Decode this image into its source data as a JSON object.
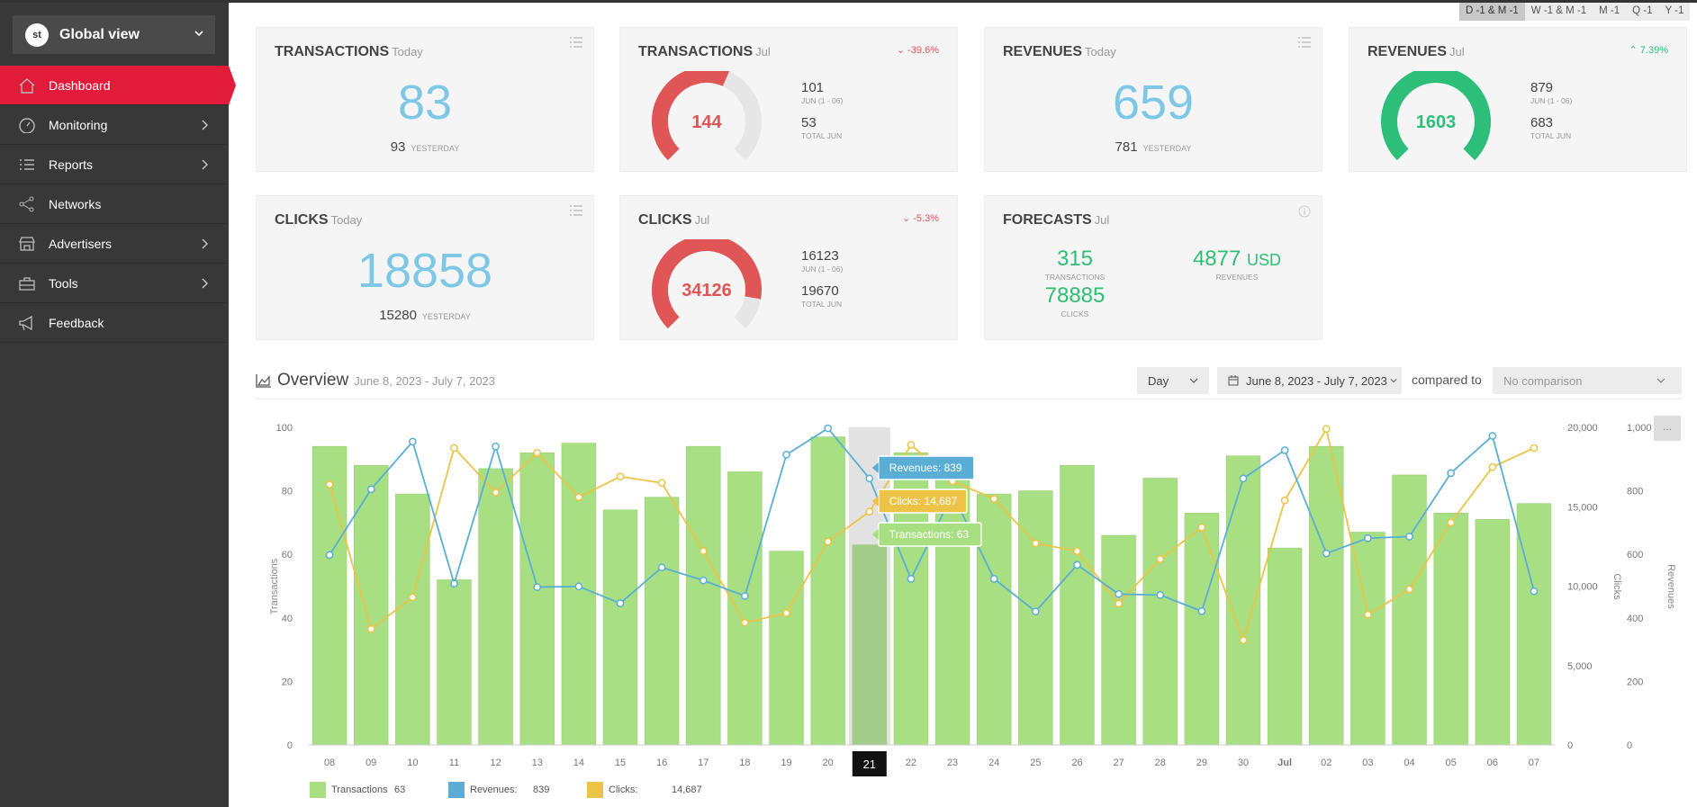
{
  "sidebar": {
    "global_view": "Global view",
    "logo": "st",
    "items": [
      {
        "label": "Dashboard",
        "active": true,
        "has_arrow": false,
        "icon": "home-icon"
      },
      {
        "label": "Monitoring",
        "active": false,
        "has_arrow": true,
        "icon": "gauge-icon"
      },
      {
        "label": "Reports",
        "active": false,
        "has_arrow": true,
        "icon": "list-icon"
      },
      {
        "label": "Networks",
        "active": false,
        "has_arrow": false,
        "icon": "network-icon"
      },
      {
        "label": "Advertisers",
        "active": false,
        "has_arrow": true,
        "icon": "store-icon"
      },
      {
        "label": "Tools",
        "active": false,
        "has_arrow": true,
        "icon": "toolbox-icon"
      },
      {
        "label": "Feedback",
        "active": false,
        "has_arrow": false,
        "icon": "megaphone-icon"
      }
    ]
  },
  "period_tabs": [
    "D -1 & M -1",
    "W -1 & M -1",
    "M -1",
    "Q -1",
    "Y -1"
  ],
  "cards": {
    "trans_today": {
      "title": "TRANSACTIONS",
      "period": "Today",
      "value": "83",
      "prev": "93",
      "prev_label": "YESTERDAY"
    },
    "trans_jul": {
      "title": "TRANSACTIONS",
      "period": "Jul",
      "gauge": "144",
      "gauge_fraction": 0.59,
      "trend": "-39.6%",
      "stat1": "101",
      "stat1_label": "JUN (1 - 06)",
      "stat2": "53",
      "stat2_label": "TOTAL JUN"
    },
    "rev_today": {
      "title": "REVENUES",
      "period": "Today",
      "value": "659",
      "prev": "781",
      "prev_label": "YESTERDAY"
    },
    "rev_jul": {
      "title": "REVENUES",
      "period": "Jul",
      "gauge": "1603",
      "gauge_fraction": 1.0,
      "trend": "7.39%",
      "stat1": "879",
      "stat1_label": "JUN (1 - 06)",
      "stat2": "683",
      "stat2_label": "TOTAL JUN"
    },
    "clicks_today": {
      "title": "CLICKS",
      "period": "Today",
      "value": "18858",
      "prev": "15280",
      "prev_label": "YESTERDAY"
    },
    "clicks_jul": {
      "title": "CLICKS",
      "period": "Jul",
      "gauge": "34126",
      "gauge_fraction": 0.87,
      "trend": "-5.3%",
      "stat1": "16123",
      "stat1_label": "JUN (1 - 06)",
      "stat2": "19670",
      "stat2_label": "TOTAL JUN"
    },
    "forecasts": {
      "title": "FORECASTS",
      "period": "Jul",
      "transactions": "315",
      "transactions_label": "TRANSACTIONS",
      "revenues": "4877",
      "revenues_unit": "USD",
      "revenues_label": "REVENUES",
      "clicks": "78885",
      "clicks_label": "CLICKS"
    }
  },
  "overview": {
    "title": "Overview",
    "range": "June 8, 2023 - July 7, 2023",
    "granularity": "Day",
    "date_button": "June 8, 2023 - July 7, 2023",
    "compared_to": "compared to",
    "comparison": "No comparison",
    "more": "..."
  },
  "colors": {
    "accent": "#e31b3b",
    "transactions": "#a8df82",
    "revenues": "#5aaed6",
    "clicks": "#ecc346",
    "gauge_red": "#e05555",
    "gauge_green": "#2dbf7a"
  },
  "chart_data": {
    "type": "bar",
    "categories": [
      "08",
      "09",
      "10",
      "11",
      "12",
      "13",
      "14",
      "15",
      "16",
      "17",
      "18",
      "19",
      "20",
      "21",
      "22",
      "23",
      "24",
      "25",
      "26",
      "27",
      "28",
      "29",
      "30",
      "Jul",
      "02",
      "03",
      "04",
      "05",
      "06",
      "07"
    ],
    "series": [
      {
        "name": "Transactions",
        "type": "bar",
        "axis": "left",
        "values": [
          94,
          88,
          79,
          52,
          87,
          92,
          95,
          74,
          78,
          94,
          86,
          61,
          97,
          63,
          92,
          89,
          79,
          80,
          88,
          66,
          84,
          73,
          91,
          62,
          94,
          67,
          85,
          73,
          71,
          76
        ]
      },
      {
        "name": "Revenues",
        "type": "line",
        "axis": "right",
        "values": [
          598,
          805,
          955,
          508,
          940,
          497,
          499,
          446,
          559,
          518,
          469,
          914,
          997,
          839,
          523,
          790,
          523,
          420,
          567,
          475,
          472,
          421,
          839,
          928,
          603,
          651,
          656,
          856,
          973,
          484
        ]
      },
      {
        "name": "Clicks",
        "type": "line",
        "axis": "middle",
        "values": [
          16400,
          7300,
          9300,
          18700,
          15900,
          18400,
          15600,
          16900,
          16500,
          12200,
          7700,
          8300,
          12800,
          14687,
          18900,
          16600,
          15500,
          12700,
          12200,
          8900,
          11700,
          13700,
          6600,
          15400,
          19900,
          8200,
          9800,
          14000,
          17500,
          18700
        ]
      }
    ],
    "ylabel_left": "Transactions",
    "ylim_left": [
      0,
      100
    ],
    "yticks_left": [
      0,
      20,
      40,
      60,
      80,
      100
    ],
    "ylabel_middle": "Clicks",
    "ylim_middle": [
      0,
      20000
    ],
    "yticks_middle": [
      "0",
      "5,000",
      "10,000",
      "15,000",
      "20,000"
    ],
    "ylabel_right": "Revenues",
    "ylim_right": [
      0,
      1000
    ],
    "yticks_right": [
      "0",
      "200",
      "400",
      "600",
      "800",
      "1,000"
    ],
    "highlight_index": 13,
    "highlight_label": "21",
    "tooltips": [
      "Revenues: 839",
      "Clicks: 14,687",
      "Transactions: 63"
    ],
    "legend": [
      {
        "label": "Transactions",
        "value": "63"
      },
      {
        "label": "Revenues:",
        "value": "839"
      },
      {
        "label": "Clicks:",
        "value": "14,687"
      }
    ]
  }
}
